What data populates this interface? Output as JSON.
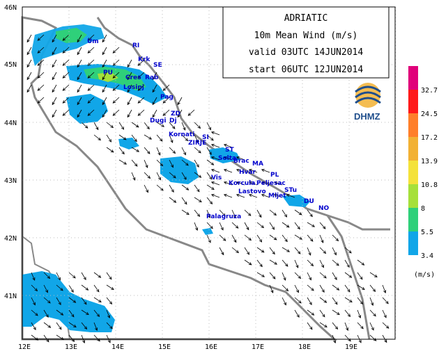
{
  "title_box": {
    "line1": "ADRIATIC",
    "line2": "10m  Mean  Wind  (m/s)",
    "line3": "valid  03UTC  14JUN2014",
    "line4": "start  06UTC  12JUN2014"
  },
  "axes": {
    "x_ticks": [
      "12E",
      "13E",
      "14E",
      "15E",
      "16E",
      "17E",
      "18E",
      "19E"
    ],
    "y_ticks": [
      "46N",
      "45N",
      "44N",
      "43N",
      "42N",
      "41N"
    ]
  },
  "legend": {
    "unit": "(m/s)",
    "bins": [
      {
        "label": "",
        "color": "#e0007a"
      },
      {
        "label": "32.7",
        "color": "#ff1a1a"
      },
      {
        "label": "24.5",
        "color": "#ff7f2a"
      },
      {
        "label": "17.2",
        "color": "#f2b134"
      },
      {
        "label": "13.9",
        "color": "#f4e23a"
      },
      {
        "label": "10.8",
        "color": "#a6e03a"
      },
      {
        "label": "8",
        "color": "#2fd07a"
      },
      {
        "label": "5.5",
        "color": "#11a6e8"
      },
      {
        "label": "3.4",
        "color": ""
      }
    ]
  },
  "logo": {
    "text": "DHMZ",
    "icon": "dhmz-logo-icon"
  },
  "places": [
    "Um",
    "RI",
    "Krk",
    "SE",
    "PU",
    "Cres",
    "Rab",
    "Losinj",
    "Pag",
    "ZD",
    "Dugi",
    "Dj",
    "Kornati",
    "SI",
    "ZIRJE",
    "ST",
    "Solta",
    "Brac",
    "MA",
    "Hvar",
    "PL",
    "Vis",
    "Korcula",
    "Peljesac",
    "Lastovo",
    "Mljet",
    "STu",
    "DU",
    "Palagruza",
    "NO"
  ],
  "colors": {
    "land": "#ffffff",
    "sea": "#ffffff",
    "coast": "#888888",
    "frame": "#000000"
  }
}
